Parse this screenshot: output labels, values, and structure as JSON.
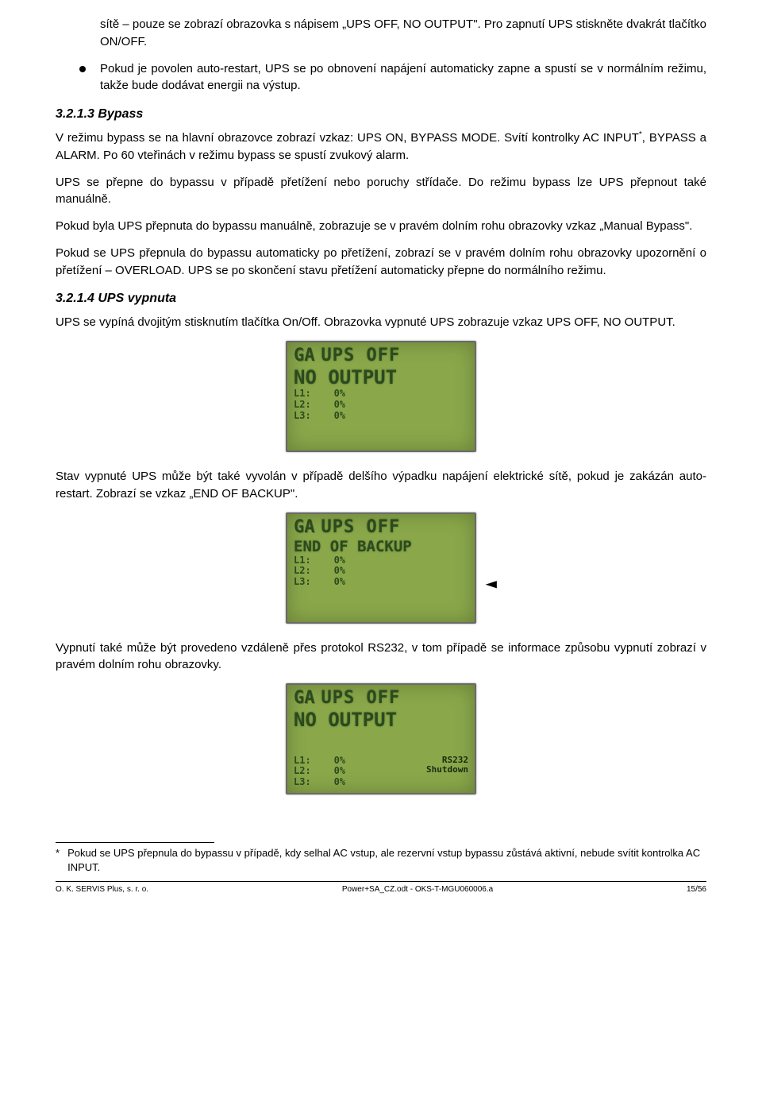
{
  "bullet1": "sítě – pouze se zobrazí obrazovka s nápisem „UPS OFF, NO OUTPUT\". Pro zapnutí UPS stiskněte dvakrát tlačítko ON/OFF.",
  "bullet2": "Pokud je povolen auto-restart, UPS se po obnovení napájení automaticky zapne a spustí se v normálním režimu, takže bude dodávat energii na výstup.",
  "h_bypass": "3.2.1.3   Bypass",
  "p_bypass1_a": "V režimu bypass se na hlavní obrazovce zobrazí vzkaz: UPS ON, BYPASS MODE. Svítí kontrolky AC INPUT",
  "p_bypass1_b": ", BYPASS a ALARM. Po 60 vteřinách v režimu bypass se spustí zvukový alarm.",
  "p_bypass2": "UPS se přepne do bypassu v případě přetížení nebo poruchy střídače. Do režimu bypass lze UPS přepnout také manuálně.",
  "p_bypass3": "Pokud byla UPS přepnuta do bypassu manuálně, zobrazuje se v pravém dolním rohu obrazovky vzkaz „Manual Bypass\".",
  "p_bypass4": "Pokud se UPS přepnula do bypassu automaticky po přetížení, zobrazí se v pravém dolním rohu obrazovky upozornění o přetížení – OVERLOAD. UPS se po skončení stavu přetížení automaticky přepne do normálního režimu.",
  "h_off": "3.2.1.4   UPS vypnuta",
  "p_off1": "UPS se vypíná dvojitým stisknutím tlačítka On/Off. Obrazovka vypnuté UPS zobrazuje vzkaz UPS OFF, NO OUTPUT.",
  "p_off2": "Stav vypnuté UPS může být také vyvolán v případě delšího výpadku napájení elektrické sítě, pokud je zakázán auto-restart. Zobrazí se vzkaz „END OF BACKUP\".",
  "p_off3": "Vypnutí také může být provedeno vzdáleně přes protokol RS232, v tom případě se informace způsobu vypnutí zobrazí v pravém dolním rohu obrazovky.",
  "lcd": {
    "bg": "#8aa84a",
    "text_color": "#2b4a1e",
    "logo": "GA",
    "title": "UPS OFF",
    "line2_a": "NO OUTPUT",
    "line2_b": "END OF BACKUP",
    "lines": "L1:    0%\nL2:    0%\nL3:    0%",
    "rs232_a": "RS232",
    "rs232_b": "Shutdown"
  },
  "footnote": "Pokud se UPS přepnula do bypassu v případě, kdy selhal AC vstup, ale rezervní vstup bypassu zůstává aktivní, nebude svítit kontrolka AC INPUT.",
  "footer": {
    "left": "O. K. SERVIS Plus, s. r. o.",
    "center": "Power+SA_CZ.odt - OKS-T-MGU060006.a",
    "right": "15/56"
  }
}
